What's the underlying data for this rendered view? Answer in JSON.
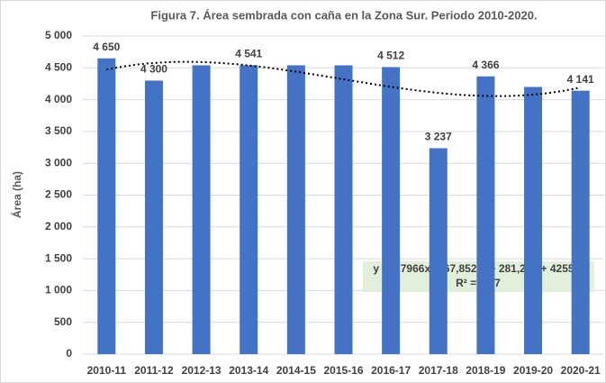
{
  "chart_data": {
    "type": "bar",
    "title": "Figura 7. Área sembrada con caña en la Zona Sur. Periodo 2010-2020.",
    "y_label": "Área (ha)",
    "categories": [
      "2010-11",
      "2011-12",
      "2012-13",
      "2013-14",
      "2014-15",
      "2015-16",
      "2016-17",
      "2017-18",
      "2018-19",
      "2019-20",
      "2020-21"
    ],
    "values": [
      4650,
      4300,
      4540,
      4541,
      4540,
      4540,
      4512,
      3237,
      4366,
      4200,
      4141
    ],
    "value_labels": [
      "4 650",
      "4 300",
      null,
      "4 541",
      null,
      null,
      "4 512",
      "3 237",
      "4 366",
      null,
      "4 141"
    ],
    "color": "#4472c4",
    "ylim": [
      0,
      5000
    ],
    "yticks": [
      0,
      {
        "value": 500,
        "label": "500"
      },
      {
        "value": 1000,
        "label": "1 000"
      },
      {
        "value": 1500,
        "label": "1 500"
      },
      {
        "value": 2000,
        "label": "2 000"
      },
      {
        "value": 2500,
        "label": "2 500"
      },
      {
        "value": 3000,
        "label": "3 000"
      },
      {
        "value": 3500,
        "label": "3 500"
      },
      {
        "value": 4000,
        "label": "4 000"
      },
      {
        "value": 4500,
        "label": "4 500"
      },
      {
        "value": 5000,
        "label": "5 000"
      }
    ],
    "grid": true,
    "trendline": {
      "coefficients": [
        3.7966,
        -67.852,
        281.24,
        4255.4
      ],
      "equation": "y = 3,7966x³ - 67,852x² + 281,24x + 4255,4",
      "r2_label": "R² = 0,27"
    }
  }
}
